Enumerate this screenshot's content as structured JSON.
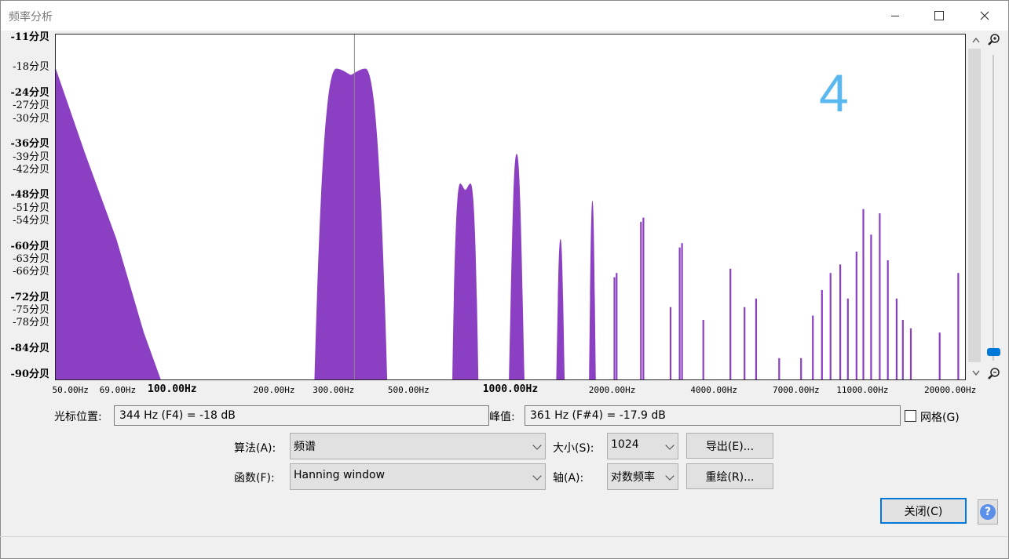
{
  "window": {
    "title": "频率分析"
  },
  "chart_data": {
    "type": "area",
    "xscale": "log",
    "xlim": [
      45,
      22000
    ],
    "ylim": [
      -91,
      -10
    ],
    "color": "#8b3fc2",
    "cursor_hz": 344,
    "y_ticks": [
      {
        "value": -11,
        "label": "-11分贝",
        "major": true
      },
      {
        "value": -18,
        "label": "-18分贝",
        "major": false
      },
      {
        "value": -24,
        "label": "-24分贝",
        "major": true
      },
      {
        "value": -27,
        "label": "-27分贝",
        "major": false
      },
      {
        "value": -30,
        "label": "-30分贝",
        "major": false
      },
      {
        "value": -36,
        "label": "-36分贝",
        "major": true
      },
      {
        "value": -39,
        "label": "-39分贝",
        "major": false
      },
      {
        "value": -42,
        "label": "-42分贝",
        "major": false
      },
      {
        "value": -48,
        "label": "-48分贝",
        "major": true
      },
      {
        "value": -51,
        "label": "-51分贝",
        "major": false
      },
      {
        "value": -54,
        "label": "-54分贝",
        "major": false
      },
      {
        "value": -60,
        "label": "-60分贝",
        "major": true
      },
      {
        "value": -63,
        "label": "-63分贝",
        "major": false
      },
      {
        "value": -66,
        "label": "-66分贝",
        "major": false
      },
      {
        "value": -72,
        "label": "-72分贝",
        "major": true
      },
      {
        "value": -75,
        "label": "-75分贝",
        "major": false
      },
      {
        "value": -78,
        "label": "-78分贝",
        "major": false
      },
      {
        "value": -84,
        "label": "-84分贝",
        "major": true
      },
      {
        "value": -90,
        "label": "-90分贝",
        "major": true
      }
    ],
    "x_ticks": [
      {
        "value": 50,
        "label": "50.00Hz",
        "major": false
      },
      {
        "value": 69,
        "label": "69.00Hz",
        "major": false
      },
      {
        "value": 100,
        "label": "100.00Hz",
        "major": true
      },
      {
        "value": 200,
        "label": "200.00Hz",
        "major": false
      },
      {
        "value": 300,
        "label": "300.00Hz",
        "major": false
      },
      {
        "value": 500,
        "label": "500.00Hz",
        "major": false
      },
      {
        "value": 1000,
        "label": "1000.00Hz",
        "major": true
      },
      {
        "value": 2000,
        "label": "2000.00Hz",
        "major": false
      },
      {
        "value": 4000,
        "label": "4000.00Hz",
        "major": false
      },
      {
        "value": 7000,
        "label": "7000.00Hz",
        "major": false
      },
      {
        "value": 11000,
        "label": "11000.00Hz",
        "major": false
      },
      {
        "value": 20000,
        "label": "20000.00Hz",
        "major": false
      }
    ],
    "wide_peaks": [
      {
        "f_left": 262,
        "f_right": 430,
        "peak_db": -18,
        "shape": "double"
      },
      {
        "f_left": 670,
        "f_right": 800,
        "peak_db": -45,
        "shape": "double"
      },
      {
        "f_left": 985,
        "f_right": 1095,
        "peak_db": -38,
        "shape": "single"
      },
      {
        "f_left": 1360,
        "f_right": 1440,
        "peak_db": -58,
        "shape": "single"
      },
      {
        "f_left": 1700,
        "f_right": 1780,
        "peak_db": -49,
        "shape": "single"
      }
    ],
    "lines": [
      {
        "f": 2020,
        "db": -67
      },
      {
        "f": 2050,
        "db": -66
      },
      {
        "f": 2420,
        "db": -54
      },
      {
        "f": 2460,
        "db": -53
      },
      {
        "f": 2960,
        "db": -74
      },
      {
        "f": 3150,
        "db": -60
      },
      {
        "f": 3200,
        "db": -59
      },
      {
        "f": 3700,
        "db": -77
      },
      {
        "f": 4450,
        "db": -65
      },
      {
        "f": 4900,
        "db": -74
      },
      {
        "f": 5300,
        "db": -72
      },
      {
        "f": 6200,
        "db": -86
      },
      {
        "f": 7200,
        "db": -86
      },
      {
        "f": 7800,
        "db": -76
      },
      {
        "f": 8300,
        "db": -70
      },
      {
        "f": 8800,
        "db": -66
      },
      {
        "f": 9400,
        "db": -64
      },
      {
        "f": 9900,
        "db": -72
      },
      {
        "f": 10500,
        "db": -61
      },
      {
        "f": 11000,
        "db": -51
      },
      {
        "f": 11600,
        "db": -57
      },
      {
        "f": 12300,
        "db": -52
      },
      {
        "f": 13000,
        "db": -63
      },
      {
        "f": 13800,
        "db": -72
      },
      {
        "f": 14400,
        "db": -77
      },
      {
        "f": 15200,
        "db": -79
      },
      {
        "f": 18500,
        "db": -80
      },
      {
        "f": 21000,
        "db": -66
      }
    ],
    "low_slope": [
      [
        45,
        -18
      ],
      [
        55,
        -38
      ],
      [
        68,
        -58
      ],
      [
        82,
        -80
      ],
      [
        92,
        -91
      ]
    ],
    "annotation": "4"
  },
  "cursor": {
    "label": "光标位置:",
    "value": "344 Hz (F4) = -18 dB"
  },
  "peak": {
    "label": "峰值:",
    "value": "361 Hz (F#4) = -17.9 dB"
  },
  "grid": {
    "label": "网格(G)",
    "checked": false
  },
  "algorithm": {
    "label": "算法(A):",
    "value": "频谱"
  },
  "size": {
    "label": "大小(S):",
    "value": "1024"
  },
  "function": {
    "label": "函数(F):",
    "value": "Hanning window"
  },
  "axis": {
    "label": "轴(A):",
    "value": "对数频率"
  },
  "buttons": {
    "export": "导出(E)...",
    "replot": "重绘(R)...",
    "close": "关闭(C)",
    "help": "?"
  },
  "colors": {
    "accent": "#0078d7",
    "spectrum": "#8b3fc2",
    "annotation": "#5ab8f0"
  }
}
